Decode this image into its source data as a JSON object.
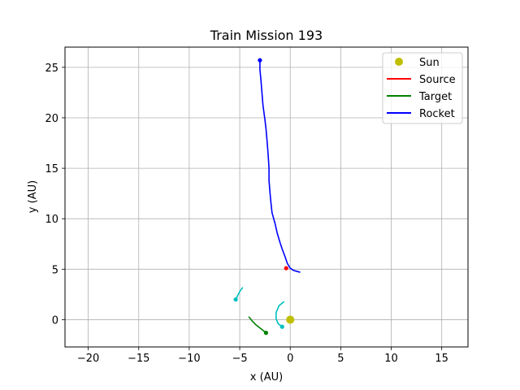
{
  "chart_data": {
    "type": "line",
    "title": "Train Mission 193",
    "xlabel": "x (AU)",
    "ylabel": "y (AU)",
    "xlim": [
      -22.3,
      17.6
    ],
    "ylim": [
      -2.7,
      27.0
    ],
    "xticks": [
      -20,
      -15,
      -10,
      -5,
      0,
      5,
      10,
      15
    ],
    "yticks": [
      0,
      5,
      10,
      15,
      20,
      25
    ],
    "grid": true,
    "legend_position": "top-right",
    "series": [
      {
        "name": "Sun",
        "kind": "marker",
        "color": "#bfbf00",
        "points": [
          [
            0,
            0
          ]
        ]
      },
      {
        "name": "Source",
        "kind": "line",
        "color": "#ff0000",
        "points": [
          [
            -0.4,
            5.1
          ]
        ],
        "end_marker": [
          -0.4,
          5.1
        ]
      },
      {
        "name": "Target",
        "kind": "line",
        "color": "#008000",
        "points": [
          [
            -4.1,
            0.3
          ],
          [
            -3.8,
            -0.1
          ],
          [
            -3.4,
            -0.5
          ],
          [
            -2.9,
            -0.9
          ],
          [
            -2.4,
            -1.3
          ]
        ],
        "end_marker": [
          -2.4,
          -1.3
        ]
      },
      {
        "name": "Rocket",
        "kind": "line",
        "color": "#0000ff",
        "points": [
          [
            1.0,
            4.7
          ],
          [
            0.6,
            4.8
          ],
          [
            0.3,
            4.9
          ],
          [
            0.0,
            5.1
          ],
          [
            -0.3,
            5.6
          ],
          [
            -0.5,
            6.2
          ],
          [
            -0.8,
            7.0
          ],
          [
            -1.0,
            7.6
          ],
          [
            -1.3,
            8.6
          ],
          [
            -1.5,
            9.5
          ],
          [
            -1.8,
            10.6
          ],
          [
            -1.9,
            11.5
          ],
          [
            -2.0,
            12.5
          ],
          [
            -2.1,
            13.8
          ],
          [
            -2.1,
            15.0
          ],
          [
            -2.2,
            16.5
          ],
          [
            -2.3,
            17.8
          ],
          [
            -2.4,
            18.9
          ],
          [
            -2.5,
            19.8
          ],
          [
            -2.6,
            20.5
          ],
          [
            -2.7,
            21.3
          ],
          [
            -2.8,
            22.5
          ],
          [
            -2.9,
            23.7
          ],
          [
            -3.0,
            24.8
          ],
          [
            -3.0,
            25.7
          ]
        ],
        "end_marker": [
          -3.0,
          25.7
        ]
      }
    ],
    "unlisted_tracks": [
      {
        "color": "#00bfbf",
        "points": [
          [
            -4.7,
            3.2
          ],
          [
            -5.0,
            2.8
          ],
          [
            -5.2,
            2.4
          ],
          [
            -5.4,
            2.0
          ]
        ],
        "end_marker": [
          -5.4,
          2.0
        ]
      },
      {
        "color": "#00bfbf",
        "points": [
          [
            -0.6,
            1.8
          ],
          [
            -1.1,
            1.4
          ],
          [
            -1.4,
            0.7
          ],
          [
            -1.4,
            0.1
          ],
          [
            -1.2,
            -0.4
          ],
          [
            -0.8,
            -0.7
          ]
        ],
        "end_marker": [
          -0.8,
          -0.7
        ]
      }
    ]
  }
}
